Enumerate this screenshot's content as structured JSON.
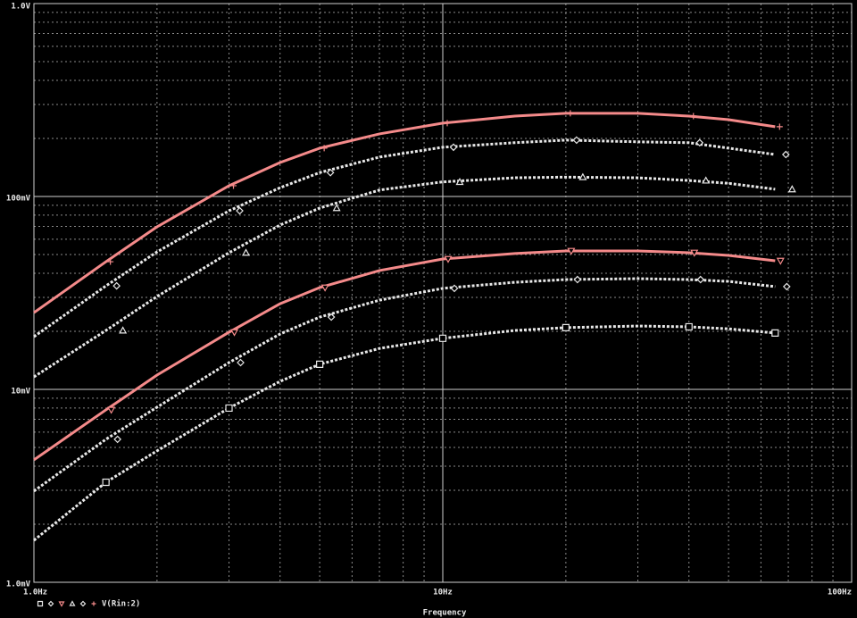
{
  "chart_data": {
    "type": "line",
    "xlabel": "Frequency",
    "legend_label": "V(Rin:2)",
    "xscale": "log",
    "yscale": "log",
    "grid": true,
    "minor_grid": true,
    "xlim": [
      1,
      100
    ],
    "ylim": [
      0.001,
      1
    ],
    "xticks": [
      {
        "value": 1,
        "label": "1.0Hz"
      },
      {
        "value": 10,
        "label": "10Hz"
      },
      {
        "value": 100,
        "label": "100Hz"
      }
    ],
    "yticks": [
      {
        "value": 0.001,
        "label": "1.0mV"
      },
      {
        "value": 0.01,
        "label": "10mV"
      },
      {
        "value": 0.1,
        "label": "100mV"
      },
      {
        "value": 1,
        "label": "1.0V"
      }
    ],
    "x": [
      1,
      1.5,
      2,
      3,
      4,
      5,
      7,
      10,
      15,
      20,
      30,
      40,
      50,
      65
    ],
    "series": [
      {
        "color": "#e8e8e8",
        "style": "dotted",
        "marker": "square",
        "values": [
          0.00165,
          0.0033,
          0.0048,
          0.008,
          0.011,
          0.0135,
          0.0163,
          0.0184,
          0.0202,
          0.0209,
          0.0213,
          0.0211,
          0.0206,
          0.0196
        ]
      },
      {
        "color": "#e8e8e8",
        "style": "dotted",
        "marker": "diamond",
        "values": [
          0.00297,
          0.00551,
          0.00808,
          0.01377,
          0.01937,
          0.0237,
          0.029,
          0.0334,
          0.0359,
          0.0371,
          0.0375,
          0.0371,
          0.0363,
          0.0341
        ]
      },
      {
        "color": "#f48a8a",
        "style": "solid",
        "marker": "triangle-down",
        "values": [
          0.00431,
          0.00783,
          0.01186,
          0.01978,
          0.0278,
          0.0337,
          0.0413,
          0.0474,
          0.0506,
          0.0522,
          0.0522,
          0.0511,
          0.0495,
          0.0464
        ]
      },
      {
        "color": "#e8e8e8",
        "style": "dotted",
        "marker": "triangle-up",
        "values": [
          0.01161,
          0.0202,
          0.0303,
          0.0511,
          0.0711,
          0.0871,
          0.108,
          0.119,
          0.125,
          0.126,
          0.125,
          0.121,
          0.117,
          0.109
        ]
      },
      {
        "color": "#e8e8e8",
        "style": "dotted",
        "marker": "diamond",
        "values": [
          0.01876,
          0.0344,
          0.0516,
          0.0843,
          0.111,
          0.133,
          0.16,
          0.18,
          0.19,
          0.196,
          0.192,
          0.19,
          0.178,
          0.165
        ]
      },
      {
        "color": "#f48a8a",
        "style": "solid",
        "marker": "plus",
        "values": [
          0.025,
          0.0459,
          0.0696,
          0.1137,
          0.15,
          0.178,
          0.211,
          0.24,
          0.261,
          0.27,
          0.27,
          0.261,
          0.25,
          0.23
        ]
      }
    ]
  }
}
